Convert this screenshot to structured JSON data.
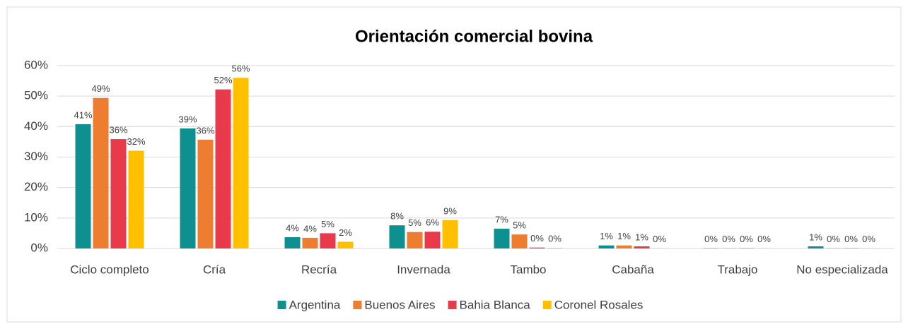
{
  "chart_data": {
    "type": "bar",
    "title": "Orientación comercial bovina",
    "categories": [
      "Ciclo completo",
      "Cría",
      "Recría",
      "Invernada",
      "Tambo",
      "Cabaña",
      "Trabajo",
      "No especializada"
    ],
    "series": [
      {
        "name": "Argentina",
        "color": "#0e9090",
        "values": [
          40.8,
          39.4,
          3.7,
          7.6,
          6.5,
          1.0,
          0.1,
          0.7
        ],
        "value_labels": [
          "41%",
          "39%",
          "4%",
          "8%",
          "7%",
          "1%",
          "0%",
          "1%"
        ]
      },
      {
        "name": "Buenos Aires",
        "color": "#ed7d31",
        "values": [
          49.4,
          35.7,
          3.5,
          5.4,
          4.6,
          1.0,
          0.1,
          0.1
        ],
        "value_labels": [
          "49%",
          "36%",
          "4%",
          "5%",
          "5%",
          "1%",
          "0%",
          "0%"
        ]
      },
      {
        "name": "Bahia Blanca",
        "color": "#e83a4b",
        "values": [
          35.9,
          52.2,
          5.0,
          5.5,
          0.3,
          0.7,
          0.1,
          0.1
        ],
        "value_labels": [
          "36%",
          "52%",
          "5%",
          "6%",
          "0%",
          "1%",
          "0%",
          "0%"
        ]
      },
      {
        "name": "Coronel Rosales",
        "color": "#ffc000",
        "values": [
          32.1,
          56.0,
          2.2,
          9.3,
          0.2,
          0.1,
          0.1,
          0.1
        ],
        "value_labels": [
          "32%",
          "56%",
          "2%",
          "9%",
          "0%",
          "0%",
          "0%",
          "0%"
        ]
      }
    ],
    "ylim": [
      0,
      60
    ],
    "yticks": [
      {
        "value": 0,
        "label": "0%"
      },
      {
        "value": 10,
        "label": "10%"
      },
      {
        "value": 20,
        "label": "20%"
      },
      {
        "value": 30,
        "label": "30%"
      },
      {
        "value": 40,
        "label": "40%"
      },
      {
        "value": 50,
        "label": "50%"
      },
      {
        "value": 60,
        "label": "60%"
      }
    ],
    "grid": true,
    "legend": "bottom"
  }
}
